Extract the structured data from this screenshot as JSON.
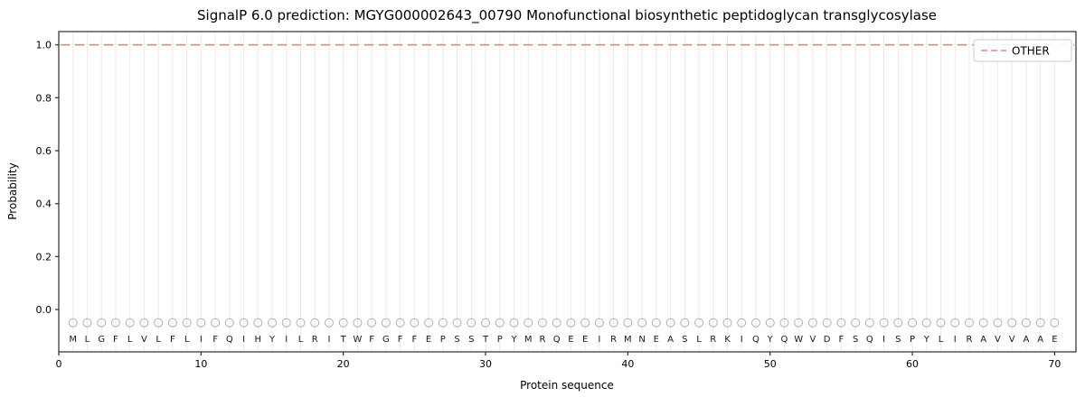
{
  "chart_data": {
    "type": "line",
    "title": "SignalP 6.0 prediction: MGYG000002643_00790 Monofunctional biosynthetic peptidoglycan transglycosylase",
    "xlabel": "Protein sequence",
    "ylabel": "Probability",
    "xlim": [
      0,
      71.5
    ],
    "ylim": [
      -0.16,
      1.05
    ],
    "xticks": [
      "0",
      "10",
      "20",
      "30",
      "40",
      "50",
      "60",
      "70"
    ],
    "yticks": [
      "0.0",
      "0.2",
      "0.4",
      "0.6",
      "0.8",
      "1.0"
    ],
    "grid": "vertical-line-per-residue",
    "gridline_color": "#ebebeb",
    "legend": {
      "position": "upper right",
      "entries": [
        {
          "label": "OTHER",
          "color": "#f08080",
          "linestyle": "dashed"
        }
      ]
    },
    "series": [
      {
        "name": "OTHER",
        "type": "hline",
        "value": 1.0,
        "color": "#f08080",
        "linestyle": "dashed"
      }
    ],
    "sequence": "MLGFLVLFLIFQIHYILRITWFGFFEPSSTPYMRQEEIRMNEASLRKIQYQWVDFSQISPYLIRAVVAAE",
    "marker": {
      "y": -0.05,
      "shape": "open-circle",
      "color": "#b0b0b0"
    },
    "letters_y": -0.105
  }
}
